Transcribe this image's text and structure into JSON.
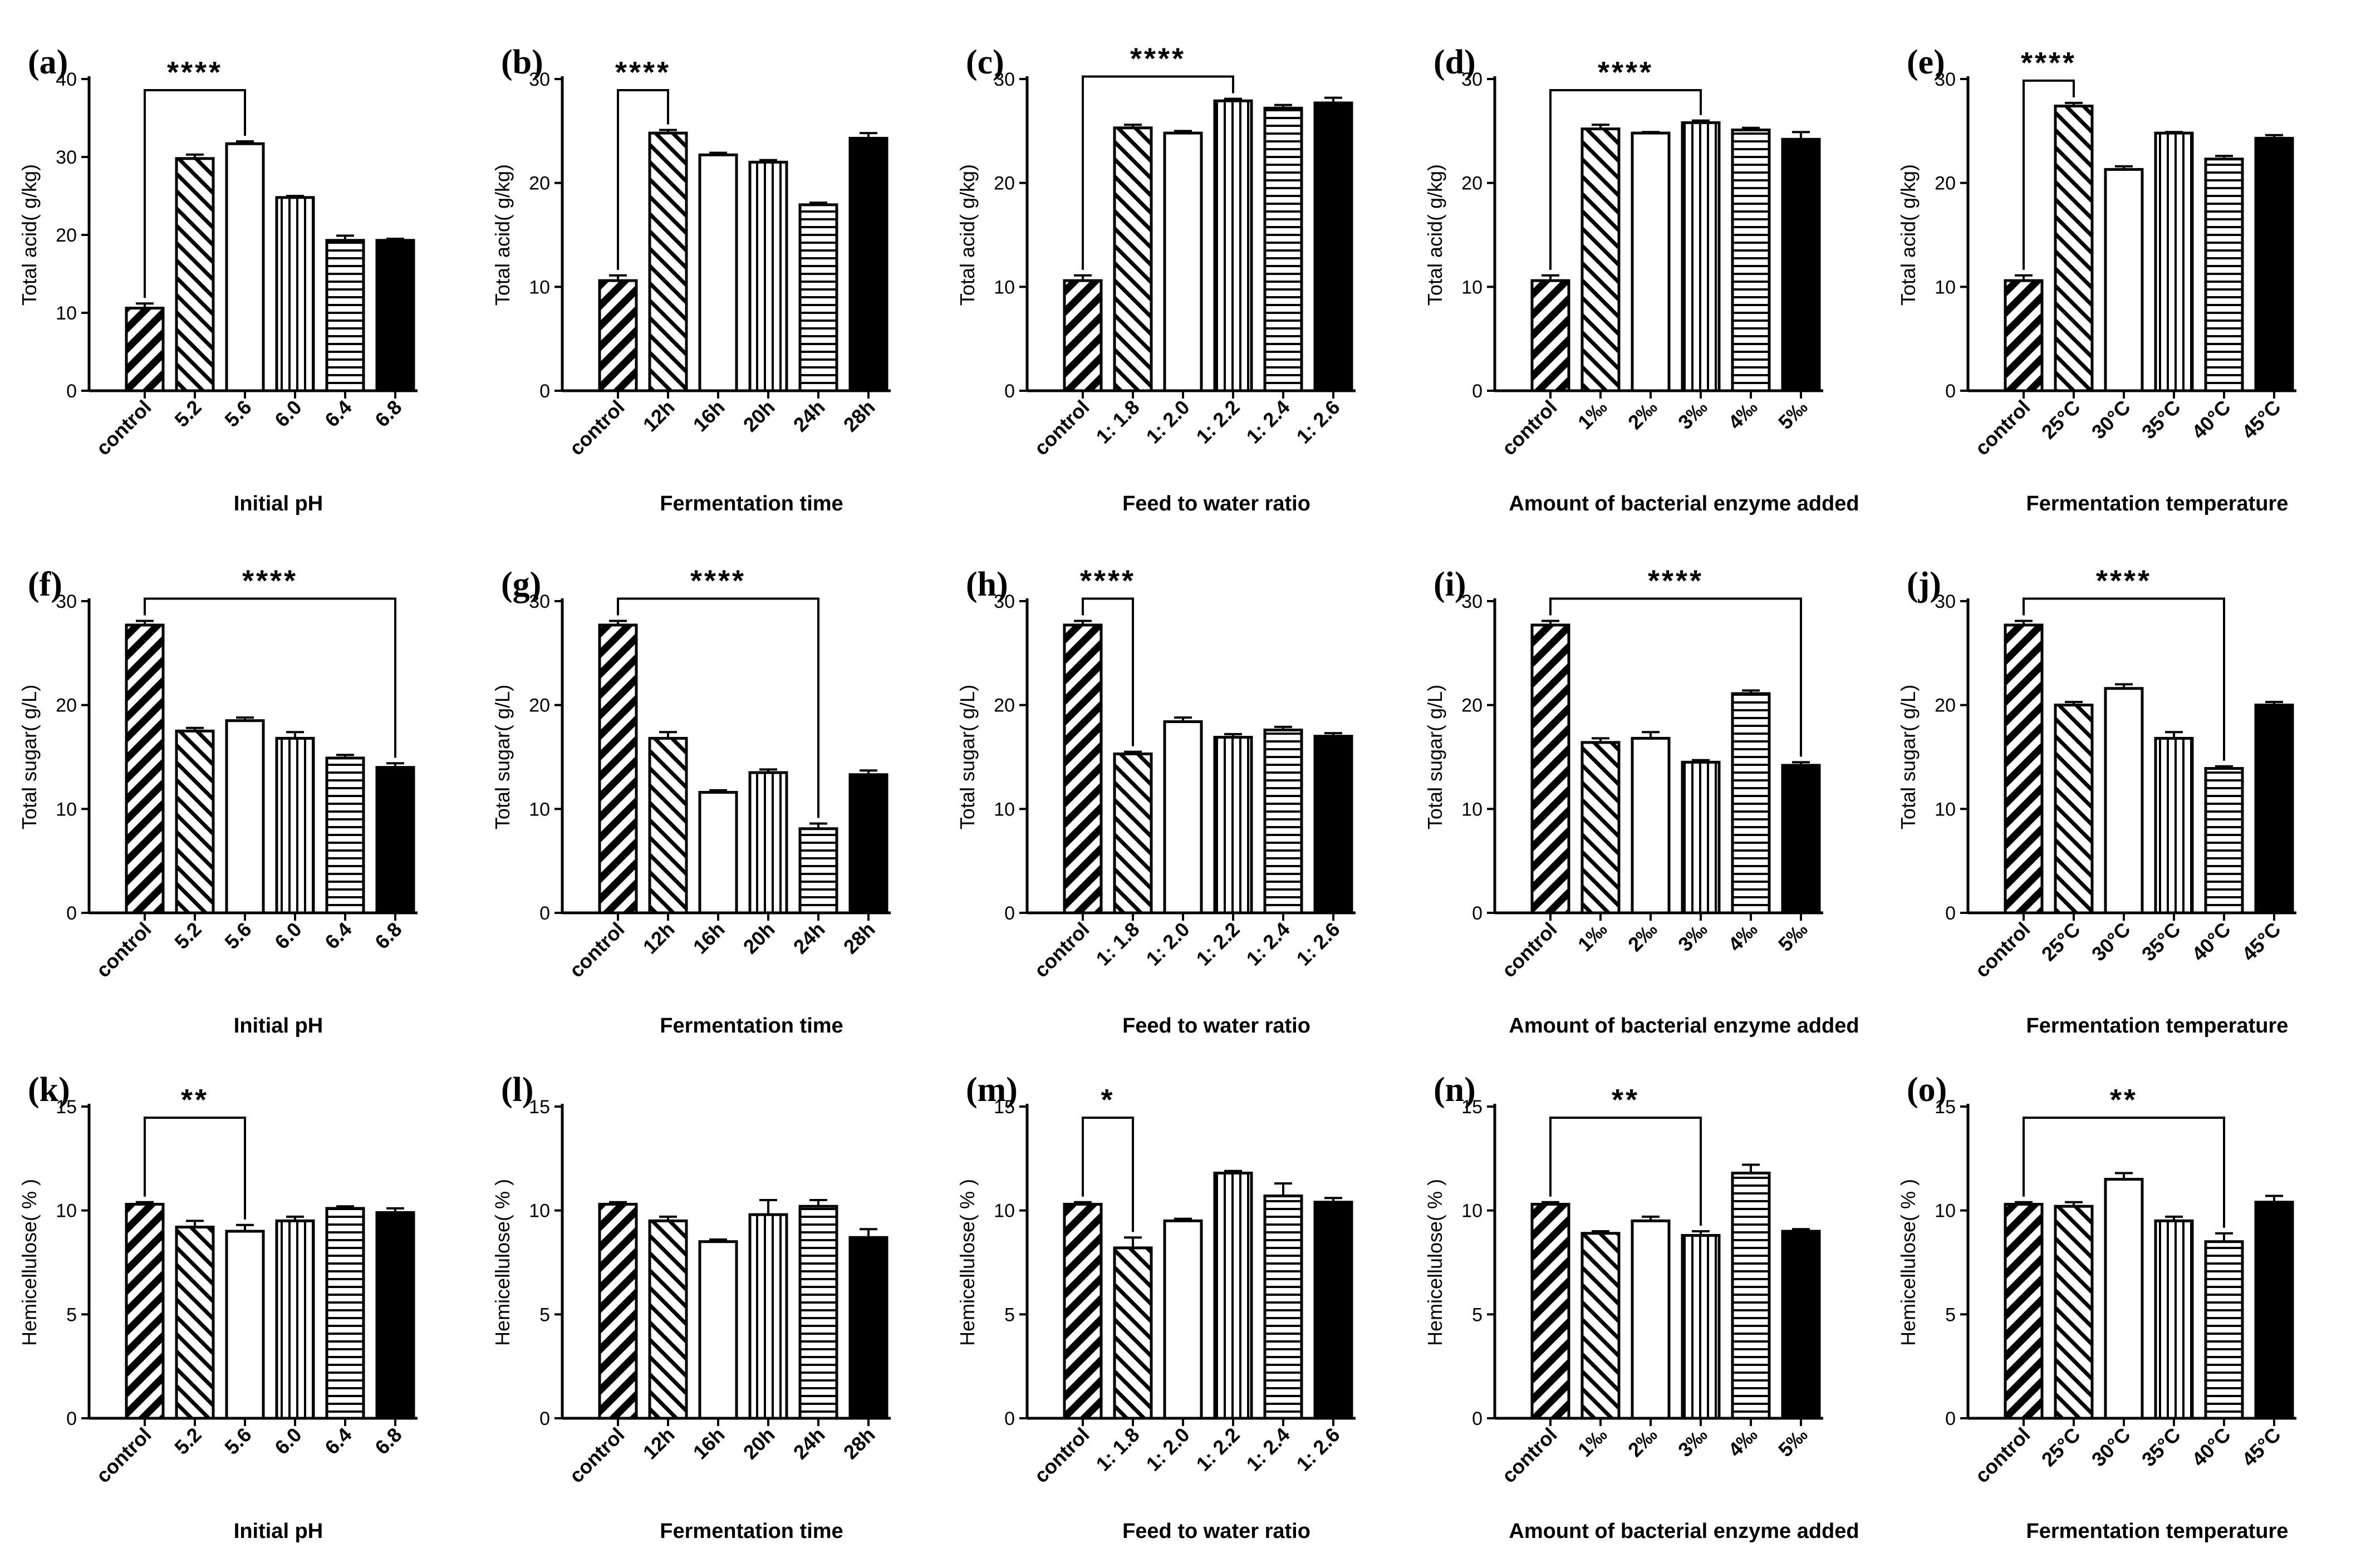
{
  "chart_data": [
    {
      "type": "bar",
      "panel": "(a)",
      "categories": [
        "control",
        "5.2",
        "5.6",
        "6.0",
        "6.4",
        "6.8"
      ],
      "values": [
        10.6,
        29.8,
        31.7,
        24.8,
        19.3,
        19.3
      ],
      "errors": [
        0.6,
        0.5,
        0.3,
        0.2,
        0.6,
        0.2
      ],
      "ylabel": "Total acid( g/kg)",
      "xlabel": "Initial pH",
      "ylim": [
        0,
        40
      ],
      "yticks": [
        0,
        10,
        20,
        30,
        40
      ],
      "significance": {
        "label": "****",
        "from": 0,
        "to": 2
      }
    },
    {
      "type": "bar",
      "panel": "(b)",
      "categories": [
        "control",
        "12h",
        "16h",
        "20h",
        "24h",
        "28h"
      ],
      "values": [
        10.6,
        24.8,
        22.7,
        22.0,
        17.9,
        24.3
      ],
      "errors": [
        0.5,
        0.3,
        0.2,
        0.2,
        0.2,
        0.5
      ],
      "ylabel": "Total acid( g/kg)",
      "xlabel": "Fermentation time",
      "ylim": [
        0,
        30
      ],
      "yticks": [
        0,
        10,
        20,
        30
      ],
      "significance": {
        "label": "****",
        "from": 0,
        "to": 1
      }
    },
    {
      "type": "bar",
      "panel": "(c)",
      "categories": [
        "control",
        "1: 1.8",
        "1: 2.0",
        "1: 2.2",
        "1: 2.4",
        "1: 2.6"
      ],
      "values": [
        10.6,
        25.3,
        24.8,
        27.9,
        27.2,
        27.7
      ],
      "errors": [
        0.5,
        0.3,
        0.2,
        0.2,
        0.3,
        0.5
      ],
      "ylabel": "Total acid( g/kg)",
      "xlabel": "Feed to water ratio",
      "ylim": [
        0,
        30
      ],
      "yticks": [
        0,
        10,
        20,
        30
      ],
      "significance": {
        "label": "****",
        "from": 0,
        "to": 3
      }
    },
    {
      "type": "bar",
      "panel": "(d)",
      "categories": [
        "control",
        "1‰",
        "2‰",
        "3‰",
        "4‰",
        "5‰"
      ],
      "values": [
        10.6,
        25.2,
        24.8,
        25.8,
        25.1,
        24.2
      ],
      "errors": [
        0.5,
        0.4,
        0.1,
        0.2,
        0.2,
        0.7
      ],
      "ylabel": "Total acid( g/kg)",
      "xlabel": "Amount of bacterial enzyme added",
      "ylim": [
        0,
        30
      ],
      "yticks": [
        0,
        10,
        20,
        30
      ],
      "significance": {
        "label": "****",
        "from": 0,
        "to": 3
      }
    },
    {
      "type": "bar",
      "panel": "(e)",
      "categories": [
        "control",
        "25°C",
        "30°C",
        "35°C",
        "40°C",
        "45°C"
      ],
      "values": [
        10.6,
        27.4,
        21.3,
        24.8,
        22.3,
        24.3
      ],
      "errors": [
        0.5,
        0.3,
        0.3,
        0.1,
        0.3,
        0.3
      ],
      "ylabel": "Total acid( g/kg)",
      "xlabel": "Fermentation temperature",
      "ylim": [
        0,
        30
      ],
      "yticks": [
        0,
        10,
        20,
        30
      ],
      "significance": {
        "label": "****",
        "from": 0,
        "to": 1
      }
    },
    {
      "type": "bar",
      "panel": "(f)",
      "categories": [
        "control",
        "5.2",
        "5.6",
        "6.0",
        "6.4",
        "6.8"
      ],
      "values": [
        27.7,
        17.5,
        18.5,
        16.8,
        14.9,
        14.0
      ],
      "errors": [
        0.4,
        0.3,
        0.3,
        0.6,
        0.3,
        0.4
      ],
      "ylabel": "Total sugar( g/L)",
      "xlabel": "Initial pH",
      "ylim": [
        0,
        30
      ],
      "yticks": [
        0,
        10,
        20,
        30
      ],
      "significance": {
        "label": "****",
        "from": 0,
        "to": 5
      }
    },
    {
      "type": "bar",
      "panel": "(g)",
      "categories": [
        "control",
        "12h",
        "16h",
        "20h",
        "24h",
        "28h"
      ],
      "values": [
        27.7,
        16.8,
        11.6,
        13.5,
        8.1,
        13.3
      ],
      "errors": [
        0.4,
        0.6,
        0.2,
        0.3,
        0.5,
        0.4
      ],
      "ylabel": "Total sugar( g/L)",
      "xlabel": "Fermentation time",
      "ylim": [
        0,
        30
      ],
      "yticks": [
        0,
        10,
        20,
        30
      ],
      "significance": {
        "label": "****",
        "from": 0,
        "to": 4
      }
    },
    {
      "type": "bar",
      "panel": "(h)",
      "categories": [
        "control",
        "1: 1.8",
        "1: 2.0",
        "1: 2.2",
        "1: 2.4",
        "1: 2.6"
      ],
      "values": [
        27.7,
        15.3,
        18.4,
        16.9,
        17.6,
        17.0
      ],
      "errors": [
        0.4,
        0.2,
        0.4,
        0.3,
        0.3,
        0.3
      ],
      "ylabel": "Total sugar( g/L)",
      "xlabel": "Feed to water ratio",
      "ylim": [
        0,
        30
      ],
      "yticks": [
        0,
        10,
        20,
        30
      ],
      "significance": {
        "label": "****",
        "from": 0,
        "to": 1
      }
    },
    {
      "type": "bar",
      "panel": "(i)",
      "categories": [
        "control",
        "1‰",
        "2‰",
        "3‰",
        "4‰",
        "5‰"
      ],
      "values": [
        27.7,
        16.4,
        16.8,
        14.5,
        21.1,
        14.2
      ],
      "errors": [
        0.4,
        0.4,
        0.6,
        0.2,
        0.3,
        0.3
      ],
      "ylabel": "Total sugar( g/L)",
      "xlabel": "Amount of bacterial enzyme added",
      "ylim": [
        0,
        30
      ],
      "yticks": [
        0,
        10,
        20,
        30
      ],
      "significance": {
        "label": "****",
        "from": 0,
        "to": 5
      }
    },
    {
      "type": "bar",
      "panel": "(j)",
      "categories": [
        "control",
        "25°C",
        "30°C",
        "35°C",
        "40°C",
        "45°C"
      ],
      "values": [
        27.7,
        20.0,
        21.6,
        16.8,
        13.9,
        20.0
      ],
      "errors": [
        0.4,
        0.3,
        0.4,
        0.6,
        0.2,
        0.3
      ],
      "ylabel": "Total sugar( g/L)",
      "xlabel": "Fermentation temperature",
      "ylim": [
        0,
        30
      ],
      "yticks": [
        0,
        10,
        20,
        30
      ],
      "significance": {
        "label": "****",
        "from": 0,
        "to": 4
      }
    },
    {
      "type": "bar",
      "panel": "(k)",
      "categories": [
        "control",
        "5.2",
        "5.6",
        "6.0",
        "6.4",
        "6.8"
      ],
      "values": [
        10.3,
        9.2,
        9.0,
        9.5,
        10.1,
        9.9
      ],
      "errors": [
        0.1,
        0.3,
        0.3,
        0.2,
        0.1,
        0.2
      ],
      "ylabel": "Hemicellulose( % )",
      "xlabel": "Initial pH",
      "ylim": [
        0,
        15
      ],
      "yticks": [
        0,
        5,
        10,
        15
      ],
      "significance": {
        "label": "**",
        "from": 0,
        "to": 2
      }
    },
    {
      "type": "bar",
      "panel": "(l)",
      "categories": [
        "control",
        "12h",
        "16h",
        "20h",
        "24h",
        "28h"
      ],
      "values": [
        10.3,
        9.5,
        8.5,
        9.8,
        10.2,
        8.7
      ],
      "errors": [
        0.1,
        0.2,
        0.1,
        0.7,
        0.3,
        0.4
      ],
      "ylabel": "Hemicellulose( % )",
      "xlabel": "Fermentation time",
      "ylim": [
        0,
        15
      ],
      "yticks": [
        0,
        5,
        10,
        15
      ]
    },
    {
      "type": "bar",
      "panel": "(m)",
      "categories": [
        "control",
        "1: 1.8",
        "1: 2.0",
        "1: 2.2",
        "1: 2.4",
        "1: 2.6"
      ],
      "values": [
        10.3,
        8.2,
        9.5,
        11.8,
        10.7,
        10.4
      ],
      "errors": [
        0.1,
        0.5,
        0.1,
        0.1,
        0.6,
        0.2
      ],
      "ylabel": "Hemicellulose( % )",
      "xlabel": "Feed to water ratio",
      "ylim": [
        0,
        15
      ],
      "yticks": [
        0,
        5,
        10,
        15
      ],
      "significance": {
        "label": "*",
        "from": 0,
        "to": 1
      }
    },
    {
      "type": "bar",
      "panel": "(n)",
      "categories": [
        "control",
        "1‰",
        "2‰",
        "3‰",
        "4‰",
        "5‰"
      ],
      "values": [
        10.3,
        8.9,
        9.5,
        8.8,
        11.8,
        9.0
      ],
      "errors": [
        0.1,
        0.1,
        0.2,
        0.2,
        0.4,
        0.1
      ],
      "ylabel": "Hemicellulose( % )",
      "xlabel": "Amount of bacterial enzyme added",
      "ylim": [
        0,
        15
      ],
      "yticks": [
        0,
        5,
        10,
        15
      ],
      "significance": {
        "label": "**",
        "from": 0,
        "to": 3
      }
    },
    {
      "type": "bar",
      "panel": "(o)",
      "categories": [
        "control",
        "25°C",
        "30°C",
        "35°C",
        "40°C",
        "45°C"
      ],
      "values": [
        10.3,
        10.2,
        11.5,
        9.5,
        8.5,
        10.4
      ],
      "errors": [
        0.1,
        0.2,
        0.3,
        0.2,
        0.4,
        0.3
      ],
      "ylabel": "Hemicellulose( % )",
      "xlabel": "Fermentation temperature",
      "ylim": [
        0,
        15
      ],
      "yticks": [
        0,
        5,
        10,
        15
      ],
      "significance": {
        "label": "**",
        "from": 0,
        "to": 4
      }
    }
  ],
  "bar_fills": [
    "stripe-back-thick",
    "stripe-forward",
    "white",
    "vertical-lines",
    "horizontal-lines",
    "black"
  ]
}
